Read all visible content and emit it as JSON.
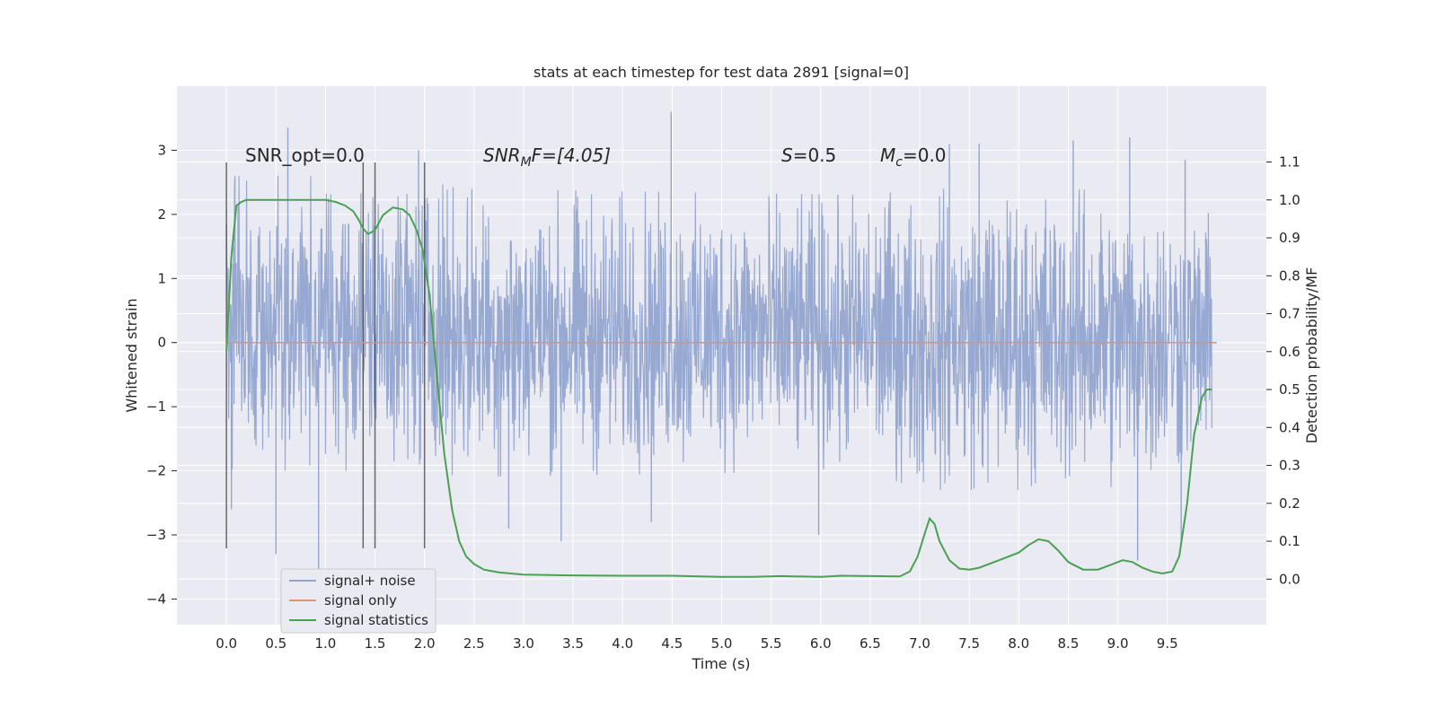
{
  "chart_data": {
    "type": "line",
    "title": "stats at each timestep for test data 2891 [signal=0]",
    "xlabel": "Time (s)",
    "ylabel": "Whitened strain",
    "y2label": "Detection probability/MF",
    "xlim": [
      -0.5,
      10.5
    ],
    "ylim": [
      -4.4,
      4.0
    ],
    "y2lim": [
      -0.12,
      1.3
    ],
    "x_ticks": [
      "0.0",
      "0.5",
      "1.0",
      "1.5",
      "2.0",
      "2.5",
      "3.0",
      "3.5",
      "4.0",
      "4.5",
      "5.0",
      "5.5",
      "6.0",
      "6.5",
      "7.0",
      "7.5",
      "8.0",
      "8.5",
      "9.0",
      "9.5"
    ],
    "y_ticks": [
      "3",
      "2",
      "1",
      "0",
      "−1",
      "−2",
      "−3",
      "−4"
    ],
    "y2_ticks": [
      "0.0",
      "0.1",
      "0.2",
      "0.3",
      "0.4",
      "0.5",
      "0.6",
      "0.7",
      "0.8",
      "0.9",
      "1.0",
      "1.1"
    ],
    "grid": true,
    "legend_position": "lower-left",
    "annotations": {
      "snr_opt": "SNR_opt=0.0",
      "snr_mf_base": "SNR",
      "snr_mf_sub": "M",
      "snr_mf_rest": "F=[4.05]",
      "s_italic": "S",
      "s_rest": "=0.5",
      "mc_base": "M",
      "mc_sub": "c",
      "mc_rest": "=0.0"
    },
    "vertical_markers": [
      0.0,
      1.38,
      1.5,
      2.0
    ],
    "series": [
      {
        "name": "signal+ noise",
        "color": "#92a5cf",
        "envelope": {
          "x": [
            0.0,
            2.0,
            2.4,
            6.5,
            7.0,
            8.5,
            9.5,
            9.95
          ],
          "upper": [
            2.6,
            2.6,
            2.4,
            2.3,
            2.4,
            2.4,
            2.3,
            2.0
          ],
          "lower": [
            -2.0,
            -2.0,
            -2.1,
            -2.0,
            -2.3,
            -2.3,
            -2.2,
            -1.8
          ]
        },
        "spikes": [
          {
            "x": 0.05,
            "y": -2.6
          },
          {
            "x": 0.5,
            "y": -3.3
          },
          {
            "x": 0.62,
            "y": 3.35
          },
          {
            "x": 0.93,
            "y": -3.6
          },
          {
            "x": 4.49,
            "y": 3.6
          },
          {
            "x": 3.38,
            "y": -3.1
          },
          {
            "x": 2.85,
            "y": -2.9
          },
          {
            "x": 9.2,
            "y": -3.4
          },
          {
            "x": 9.64,
            "y": -3.15
          },
          {
            "x": 1.94,
            "y": 3.0
          },
          {
            "x": 8.55,
            "y": 3.15
          },
          {
            "x": 7.6,
            "y": 3.1
          },
          {
            "x": 9.12,
            "y": 3.2
          },
          {
            "x": 9.68,
            "y": 2.85
          },
          {
            "x": 7.3,
            "y": 3.1
          },
          {
            "x": 5.98,
            "y": -3.0
          },
          {
            "x": 4.29,
            "y": -2.8
          }
        ]
      },
      {
        "name": "signal only",
        "color": "#e1916e",
        "x": [
          0.0,
          10.0
        ],
        "y": [
          0.0,
          0.0
        ]
      },
      {
        "name": "signal statistics",
        "color": "#4aa154",
        "axis": "right",
        "x": [
          0.0,
          0.05,
          0.1,
          0.15,
          0.2,
          0.3,
          0.5,
          0.8,
          1.0,
          1.1,
          1.2,
          1.28,
          1.33,
          1.38,
          1.43,
          1.5,
          1.58,
          1.68,
          1.78,
          1.85,
          1.92,
          1.98,
          2.05,
          2.12,
          2.2,
          2.28,
          2.35,
          2.42,
          2.5,
          2.6,
          2.75,
          3.0,
          3.5,
          4.0,
          4.5,
          5.0,
          5.3,
          5.6,
          6.0,
          6.2,
          6.5,
          6.8,
          6.9,
          6.98,
          7.05,
          7.1,
          7.15,
          7.2,
          7.3,
          7.4,
          7.5,
          7.6,
          7.8,
          8.0,
          8.1,
          8.2,
          8.3,
          8.4,
          8.5,
          8.65,
          8.8,
          8.95,
          9.05,
          9.15,
          9.25,
          9.35,
          9.45,
          9.55,
          9.62,
          9.7,
          9.77,
          9.85,
          9.9,
          9.95
        ],
        "y": [
          0.6,
          0.85,
          0.985,
          0.995,
          1.0,
          1.0,
          1.0,
          1.0,
          1.0,
          0.995,
          0.985,
          0.97,
          0.95,
          0.925,
          0.91,
          0.92,
          0.96,
          0.98,
          0.975,
          0.96,
          0.92,
          0.87,
          0.75,
          0.55,
          0.33,
          0.18,
          0.1,
          0.06,
          0.04,
          0.025,
          0.018,
          0.012,
          0.01,
          0.009,
          0.009,
          0.006,
          0.006,
          0.008,
          0.006,
          0.009,
          0.008,
          0.007,
          0.02,
          0.06,
          0.12,
          0.16,
          0.145,
          0.1,
          0.05,
          0.028,
          0.025,
          0.03,
          0.05,
          0.07,
          0.09,
          0.105,
          0.1,
          0.075,
          0.045,
          0.025,
          0.025,
          0.04,
          0.05,
          0.045,
          0.03,
          0.02,
          0.015,
          0.02,
          0.06,
          0.2,
          0.38,
          0.48,
          0.5,
          0.5
        ]
      }
    ]
  }
}
